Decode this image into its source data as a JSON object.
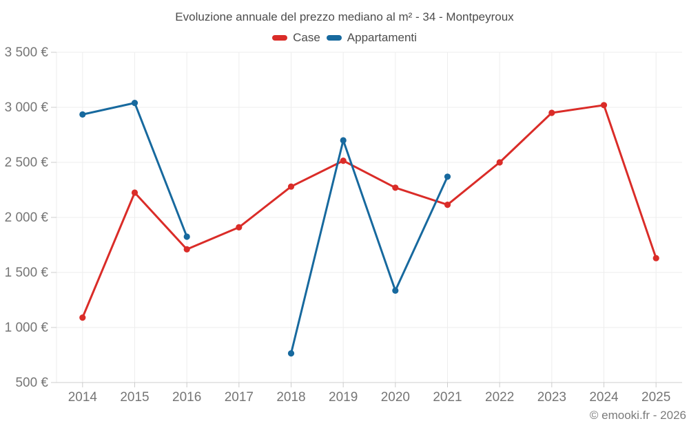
{
  "header": {
    "title": "Evoluzione annuale del prezzo mediano al m² - 34 - Montpeyroux"
  },
  "legend": {
    "items": [
      {
        "label": "Case",
        "color": "#da2c28"
      },
      {
        "label": "Appartamenti",
        "color": "#17699e"
      }
    ]
  },
  "footer": {
    "credit": "© emooki.fr - 2026"
  },
  "colors": {
    "background": "#ffffff",
    "grid": "#ededed",
    "axis": "#cccccc",
    "tick_text": "#757575",
    "title_text": "#4c4c4c",
    "case_red": "#da2c28",
    "appartamenti_blue": "#17699e"
  },
  "chart_data": {
    "type": "line",
    "title": "Evoluzione annuale del prezzo mediano al m² - 34 - Montpeyroux",
    "xlabel": "",
    "ylabel": "",
    "categories": [
      "2014",
      "2015",
      "2016",
      "2017",
      "2018",
      "2019",
      "2020",
      "2021",
      "2022",
      "2023",
      "2024",
      "2025"
    ],
    "series": [
      {
        "name": "Case",
        "color": "#da2c28",
        "values": [
          1090,
          2225,
          1710,
          1910,
          2280,
          2515,
          2270,
          2115,
          2500,
          2950,
          3020,
          1630
        ]
      },
      {
        "name": "Appartamenti",
        "color": "#17699e",
        "values": [
          2935,
          3040,
          1825,
          null,
          765,
          2700,
          1335,
          2370,
          null,
          null,
          null,
          null
        ]
      }
    ],
    "ylim": [
      500,
      3500
    ],
    "ytick_step": 500,
    "ytick_labels": [
      "500 €",
      "1 000 €",
      "1 500 €",
      "2 000 €",
      "2 500 €",
      "3 000 €",
      "3 500 €"
    ],
    "currency": "€",
    "grid": true,
    "legend_position": "top",
    "annotations": []
  }
}
